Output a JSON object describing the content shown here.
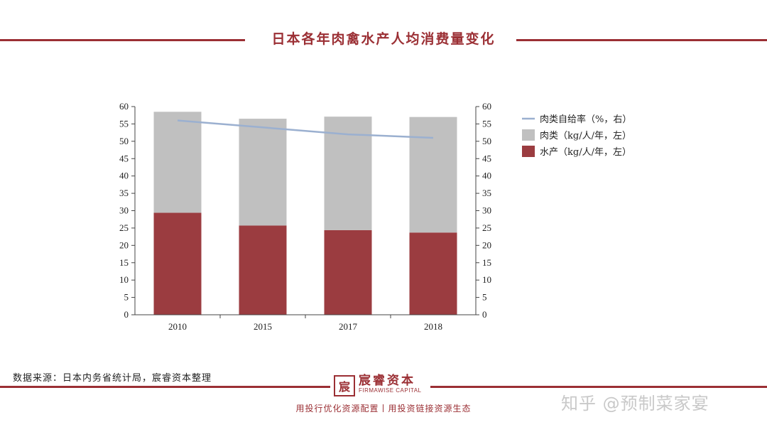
{
  "title": "日本各年肉禽水产人均消费量变化",
  "source": "数据来源：日本内务省统计局，宸睿资本整理",
  "brand": {
    "name": "宸睿资本",
    "en": "FIRMAWISE CAPITAL",
    "logo_char": "宸"
  },
  "slogan": "用投行优化资源配置丨用投资链接资源生态",
  "watermark": "知乎 @预制菜家宴",
  "colors": {
    "accent": "#9b2f34",
    "meat": "#c0c0c0",
    "aquatic": "#9b3c40",
    "line": "#9bb0d0"
  },
  "chart_data": {
    "type": "bar",
    "stacked": true,
    "categories": [
      "2010",
      "2015",
      "2017",
      "2018"
    ],
    "series": [
      {
        "name": "水产（kg/人/年，左）",
        "type": "bar",
        "axis": "left",
        "values": [
          29.4,
          25.7,
          24.4,
          23.7
        ]
      },
      {
        "name": "肉类（kg/人/年，左）",
        "type": "bar",
        "axis": "left",
        "values": [
          29.1,
          30.8,
          32.7,
          33.3
        ]
      },
      {
        "name": "肉类自给率（%，右）",
        "type": "line",
        "axis": "right",
        "values": [
          56,
          54,
          52,
          51
        ]
      }
    ],
    "ylim_left": [
      0,
      60
    ],
    "ylim_right": [
      0,
      60
    ],
    "yticks": [
      0,
      5,
      10,
      15,
      20,
      25,
      30,
      35,
      40,
      45,
      50,
      55,
      60
    ],
    "legend": [
      {
        "label": "肉类自给率（%，右）",
        "kind": "line"
      },
      {
        "label": "肉类（kg/人/年，左）",
        "kind": "box",
        "color": "#c0c0c0"
      },
      {
        "label": "水产（kg/人/年，左）",
        "kind": "box",
        "color": "#9b3c40"
      }
    ],
    "legend_position": "right",
    "grid": false
  }
}
